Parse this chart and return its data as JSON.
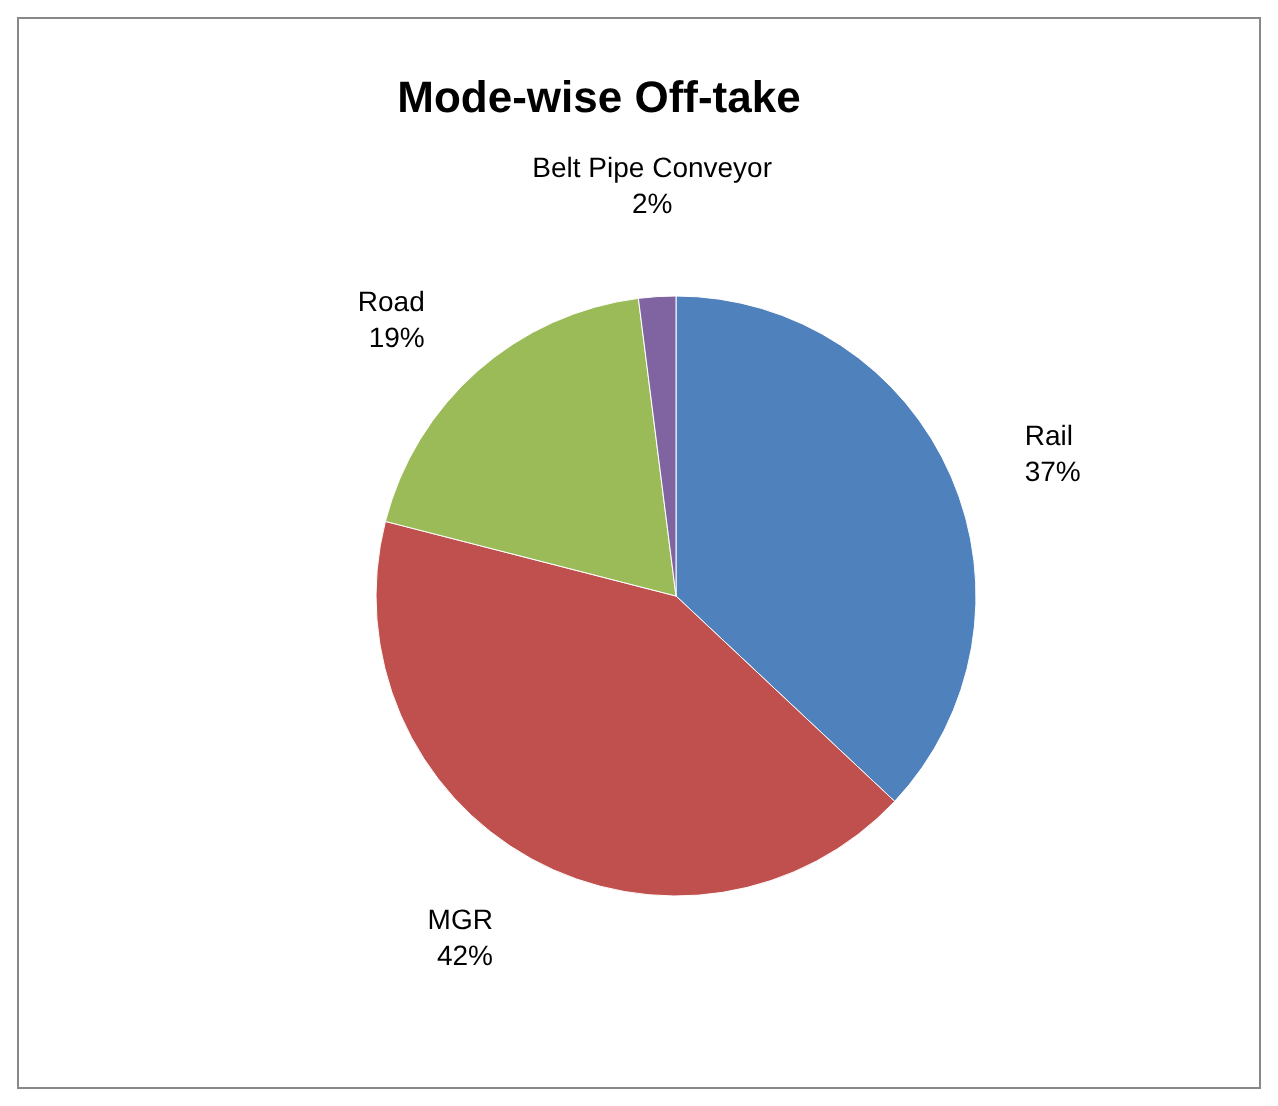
{
  "chart_data": {
    "type": "pie",
    "title": "Mode-wise Off-take",
    "categories": [
      "Rail",
      "MGR",
      "Road",
      "Belt Pipe Conveyor"
    ],
    "values": [
      37,
      42,
      19,
      2
    ],
    "colors": [
      "#4f81bd",
      "#c0504d",
      "#9bbb59",
      "#8064a2"
    ],
    "value_labels": [
      "37%",
      "42%",
      "19%",
      "2%"
    ],
    "legend": false
  }
}
